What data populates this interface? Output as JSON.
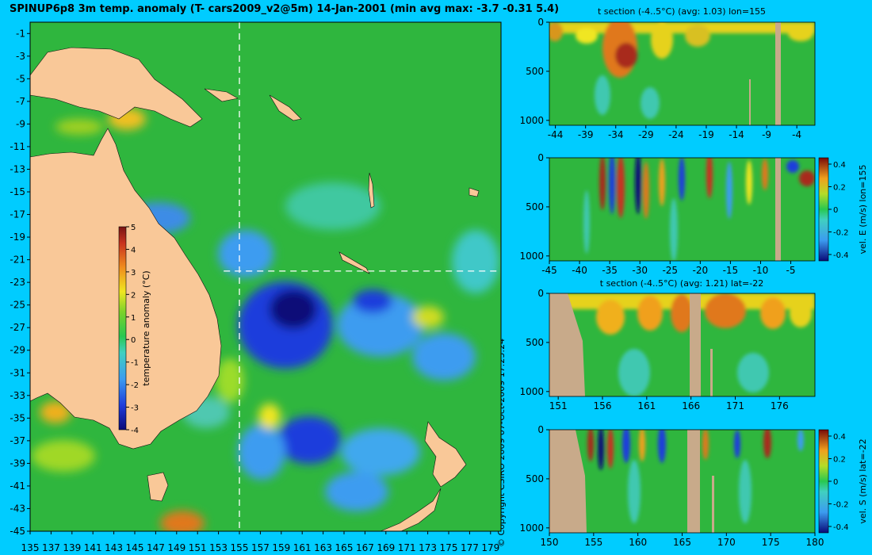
{
  "title": "SPINUP6p8 3m temp. anomaly (T- cars2009_v2@5m) 14-Jan-2001 (min avg max: -3.7 -0.31 5.4)",
  "copyright": "© Copyright CSIRO 2009   07-Oct-2009 17:25:24",
  "colors": {
    "background": "#00ccff",
    "land": "#f9c898",
    "section_land": "#c8aa8a",
    "crosshair": "#ffffff"
  },
  "chart_data": [
    {
      "id": "map",
      "type": "heatmap",
      "title": "SPINUP6p8 3m temp. anomaly (T- cars2009_v2@5m) 14-Jan-2001 (min avg max: -3.7 -0.31 5.4)",
      "xlabel": "",
      "ylabel": "",
      "x_ticks": [
        135,
        137,
        139,
        141,
        143,
        145,
        147,
        149,
        151,
        153,
        155,
        157,
        159,
        161,
        163,
        165,
        167,
        169,
        171,
        173,
        175,
        177,
        179
      ],
      "y_ticks": [
        -1,
        -3,
        -5,
        -7,
        -9,
        -11,
        -13,
        -15,
        -17,
        -19,
        -21,
        -23,
        -25,
        -27,
        -29,
        -31,
        -33,
        -35,
        -37,
        -39,
        -41,
        -43,
        -45
      ],
      "xlim": [
        135,
        180
      ],
      "ylim": [
        -45,
        0
      ],
      "crosshair": {
        "lon": 155,
        "lat": -22
      },
      "colorbar": {
        "label": "temperature anomaly (°C)",
        "ticks": [
          5,
          4,
          3,
          2,
          1,
          0,
          -1,
          -2,
          -3,
          -4
        ],
        "range": [
          -4,
          5
        ]
      }
    },
    {
      "id": "section1",
      "type": "heatmap",
      "title": "t section (-4..5°C) (avg: 1.03) lon=155",
      "x_ticks": [
        -44,
        -39,
        -34,
        -29,
        -24,
        -19,
        -14,
        -9,
        -4
      ],
      "y_ticks": [
        0,
        500,
        1000
      ],
      "xlim": [
        -45,
        -1
      ],
      "ylim": [
        1050,
        0
      ]
    },
    {
      "id": "section2",
      "type": "heatmap",
      "title": "",
      "x_ticks": [
        -45,
        -40,
        -35,
        -30,
        -25,
        -20,
        -15,
        -10,
        -5
      ],
      "y_ticks": [
        0,
        500,
        1000
      ],
      "xlim": [
        -45,
        -1
      ],
      "ylim": [
        1050,
        0
      ],
      "colorbar": {
        "label": "vel. E (m/s) lon=155",
        "ticks": [
          "0.4",
          "0.2",
          "0",
          "-0.2",
          "-0.4"
        ]
      }
    },
    {
      "id": "section3",
      "type": "heatmap",
      "title": "t section (-4..5°C) (avg: 1.21) lat=-22",
      "x_ticks": [
        151,
        156,
        161,
        166,
        171,
        176
      ],
      "y_ticks": [
        0,
        500,
        1000
      ],
      "xlim": [
        150,
        180
      ],
      "ylim": [
        1050,
        0
      ]
    },
    {
      "id": "section4",
      "type": "heatmap",
      "title": "",
      "x_ticks": [
        150,
        155,
        160,
        165,
        170,
        175,
        180
      ],
      "y_ticks": [
        0,
        500,
        1000
      ],
      "xlim": [
        150,
        180
      ],
      "ylim": [
        1050,
        0
      ],
      "colorbar": {
        "label": "vel. S (m/s) lat=-22",
        "ticks": [
          "0.4",
          "0.2",
          "0",
          "-0.2",
          "-0.4"
        ]
      }
    }
  ]
}
